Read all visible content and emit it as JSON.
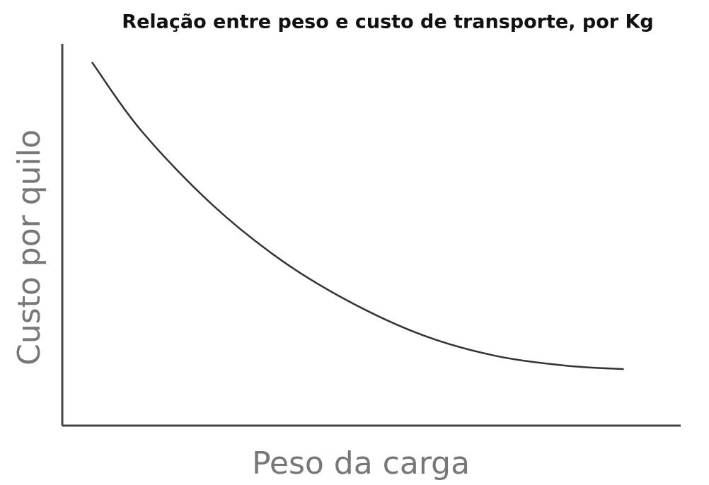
{
  "chart_data": {
    "type": "line",
    "title": "Relação entre peso e custo de transporte, por Kg",
    "x_label": "Peso da carga",
    "y_label": "Custo por quilo",
    "x": [
      4.8,
      12.8,
      24.3,
      35.7,
      47.1,
      58.6,
      70.0,
      81.5,
      90.8
    ],
    "values": [
      95.2,
      77.2,
      57.8,
      43.0,
      31.9,
      23.5,
      18.3,
      15.7,
      14.8
    ],
    "color": "#333333",
    "xlim": [
      0,
      100
    ],
    "ylim": [
      0,
      100
    ]
  }
}
